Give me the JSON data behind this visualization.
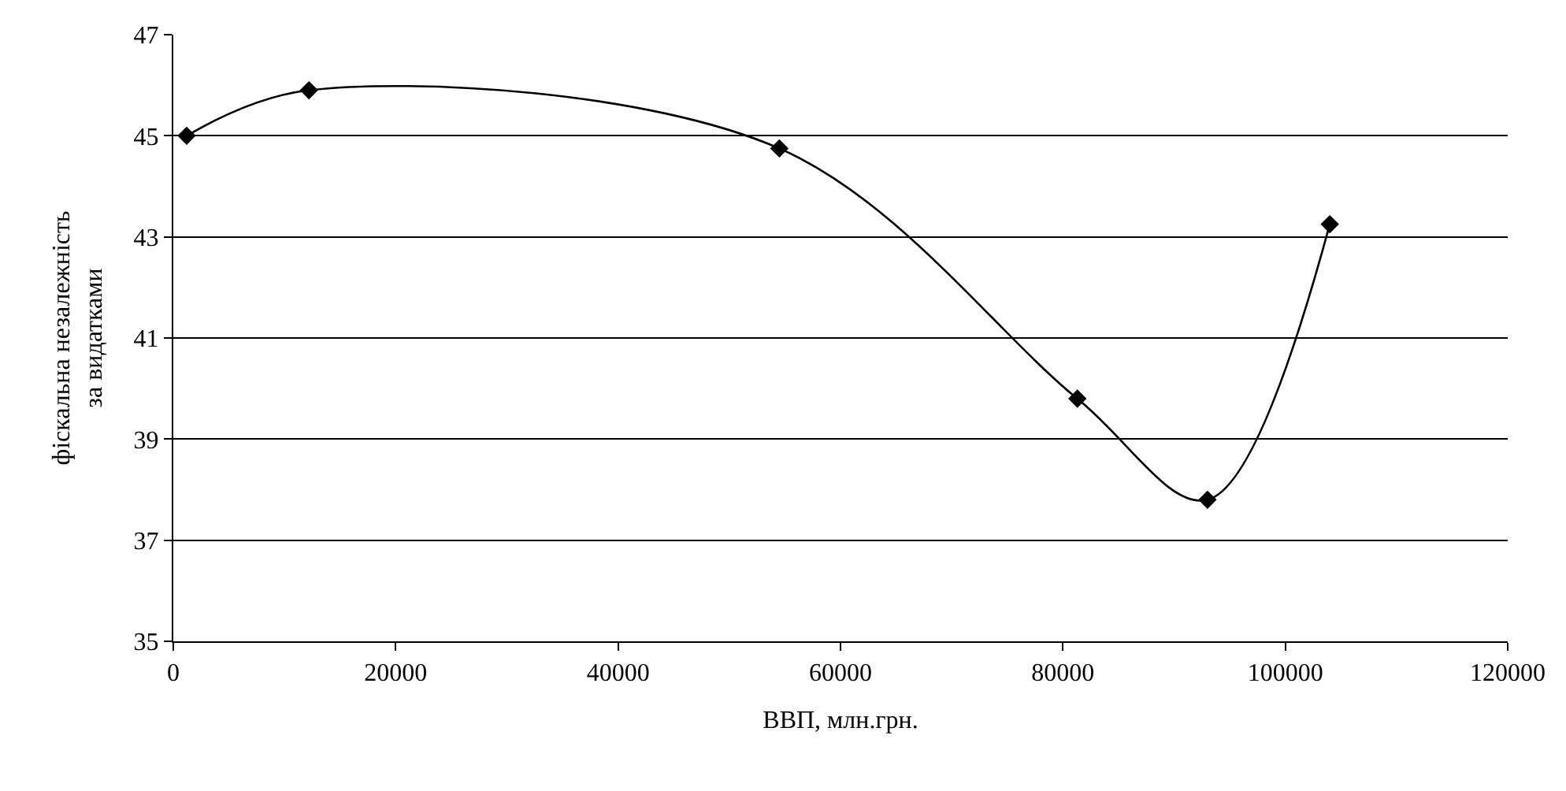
{
  "chart_data": {
    "type": "line",
    "xlabel": "ВВП, млн.грн.",
    "ylabel": "фіскальна незалежність\nза видатками",
    "x": [
      1200,
      12200,
      54500,
      81300,
      93000,
      104000
    ],
    "series": [
      {
        "color": "#000000",
        "values": [
          45.0,
          45.9,
          44.75,
          39.8,
          37.8,
          43.25
        ]
      }
    ],
    "xlim": [
      0,
      120000
    ],
    "xticks": [
      0,
      20000,
      40000,
      60000,
      80000,
      100000,
      120000
    ],
    "ylim": [
      35,
      47
    ],
    "yticks": [
      35,
      37,
      39,
      41,
      43,
      45,
      47
    ],
    "grid": "y",
    "marker": "diamond",
    "line_style": "solid",
    "legend": false
  }
}
